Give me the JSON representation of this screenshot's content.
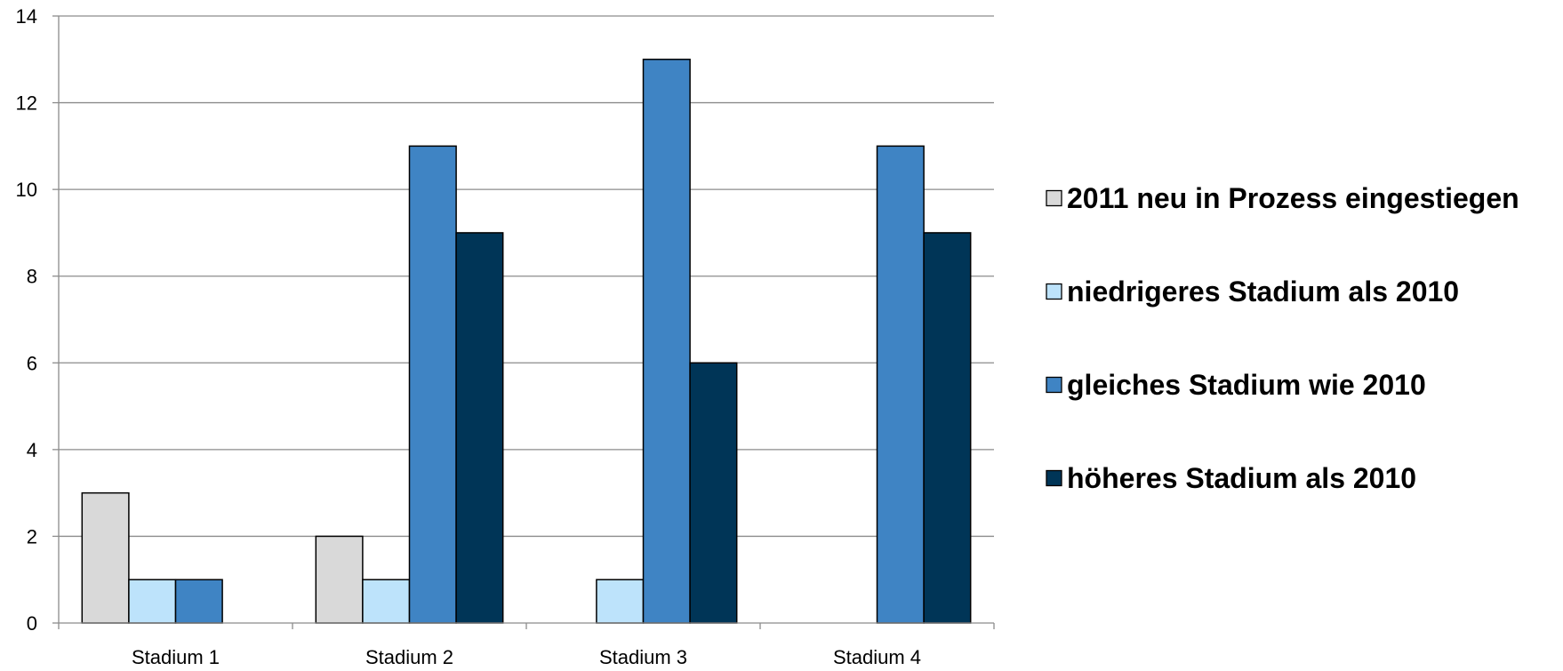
{
  "chart_data": {
    "type": "bar",
    "categories": [
      "Stadium 1",
      "Stadium 2",
      "Stadium 3",
      "Stadium 4"
    ],
    "series": [
      {
        "name": "2011 neu in Prozess eingestiegen",
        "color": "#d9d9d9",
        "values": [
          3,
          2,
          0,
          0
        ]
      },
      {
        "name": "niedrigeres Stadium als 2010",
        "color": "#bde3fb",
        "values": [
          1,
          1,
          1,
          0
        ]
      },
      {
        "name": "gleiches Stadium wie 2010",
        "color": "#3f84c4",
        "values": [
          1,
          11,
          13,
          11
        ]
      },
      {
        "name": "höheres Stadium als 2010",
        "color": "#003557",
        "values": [
          0,
          9,
          6,
          9
        ]
      }
    ],
    "ylim": [
      0,
      14
    ],
    "yticks": [
      0,
      2,
      4,
      6,
      8,
      10,
      12,
      14
    ],
    "grid": true,
    "legend_position": "right",
    "title": "",
    "xlabel": "",
    "ylabel": ""
  }
}
